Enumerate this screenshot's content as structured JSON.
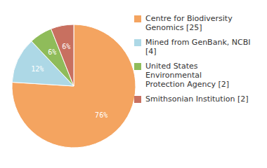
{
  "chart_data": {
    "type": "pie",
    "categories": [
      "Centre for Biodiversity\nGenomics [25]",
      "Mined from GenBank, NCBI [4]",
      "United States Environmental\nProtection Agency [2]",
      "Smithsonian Institution [2]"
    ],
    "values": [
      76,
      12,
      6,
      6
    ],
    "value_labels": [
      "76%",
      "12%",
      "6%",
      "6%"
    ],
    "colors": [
      "#F4A460",
      "#ADD8E6",
      "#8FBC5A",
      "#C87060"
    ],
    "data_labels": true,
    "legend": "right"
  }
}
